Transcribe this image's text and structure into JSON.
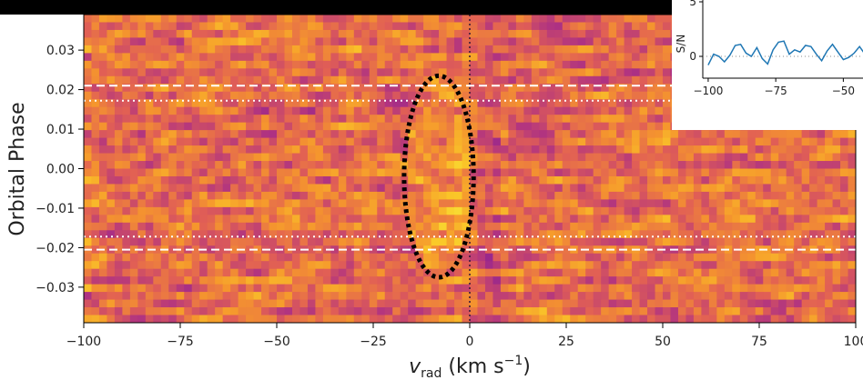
{
  "chart_data": [
    {
      "type": "heatmap",
      "xlabel": "v",
      "xlabel_sub": "rad",
      "xlabel_units": " (km s",
      "xlabel_exp": "−1",
      "xlabel_close": ")",
      "ylabel": "Orbital Phase",
      "xlim": [
        -100,
        100
      ],
      "ylim": [
        -0.039,
        0.039
      ],
      "xticks": [
        -100,
        -75,
        -50,
        -25,
        0,
        25,
        50,
        75,
        100
      ],
      "xtick_labels": [
        "−100",
        "−75",
        "−50",
        "−25",
        "0",
        "25",
        "50",
        "75",
        "100"
      ],
      "yticks": [
        -0.03,
        -0.02,
        -0.01,
        0.0,
        0.01,
        0.02,
        0.03
      ],
      "ytick_labels": [
        "−0.03",
        "−0.02",
        "−0.01",
        "0.00",
        "0.01",
        "0.02",
        "0.03"
      ],
      "colormap": "plasma",
      "grid": false,
      "dashed_lines_phase": [
        0.021,
        -0.0205
      ],
      "dotted_lines_phase": [
        0.0172,
        -0.0172
      ],
      "dotted_vline_vrad": 0,
      "highlight_ellipse": {
        "center_vrad": -8,
        "center_phase": -0.002,
        "half_width_vrad": 9,
        "half_height_phase": 0.0255
      },
      "line_color": "#ffffff",
      "marker_color": "#000000"
    },
    {
      "type": "line",
      "ylabel": "S/N",
      "xlim": [
        -102,
        -38
      ],
      "ytick_labels": [
        "0",
        "5"
      ],
      "yticks": [
        0,
        5
      ],
      "xtick_labels": [
        "−100",
        "−75",
        "−50"
      ],
      "xticks": [
        -100,
        -75,
        -50
      ],
      "zero_line": true,
      "series": [
        {
          "color": "#1f77b4",
          "x": [
            -100,
            -98,
            -96,
            -94,
            -92,
            -90,
            -88,
            -86,
            -84,
            -82,
            -80,
            -78,
            -76,
            -74,
            -72,
            -70,
            -68,
            -66,
            -64,
            -62,
            -60,
            -58,
            -56,
            -54,
            -52,
            -50,
            -48,
            -46,
            -44,
            -42,
            -40
          ],
          "values": [
            -0.8,
            0.2,
            0.0,
            -0.5,
            0.1,
            1.0,
            1.1,
            0.3,
            0.0,
            0.8,
            -0.2,
            -0.7,
            0.6,
            1.3,
            1.4,
            0.2,
            0.6,
            0.4,
            1.0,
            0.9,
            0.2,
            -0.4,
            0.5,
            1.1,
            0.4,
            -0.3,
            -0.1,
            0.3,
            0.9,
            0.2,
            0.5
          ]
        }
      ]
    }
  ]
}
